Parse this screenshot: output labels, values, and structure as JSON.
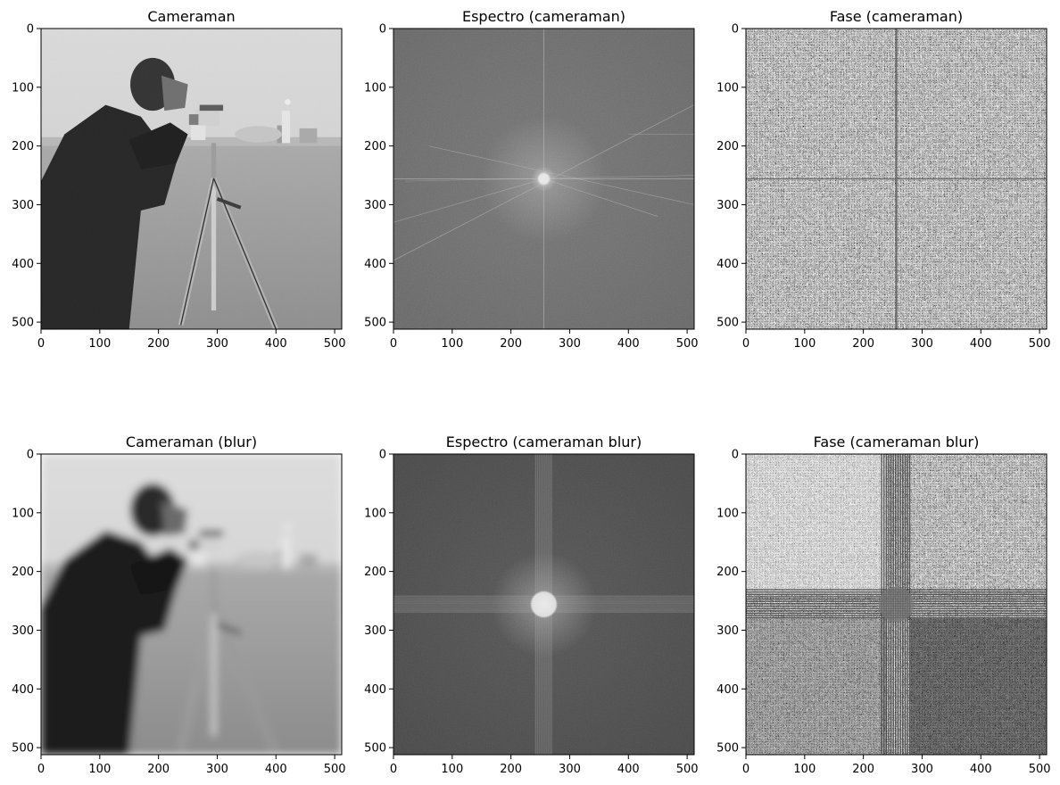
{
  "figure": {
    "background": "#ffffff",
    "grid": false,
    "legend": "none"
  },
  "chart_data": [
    {
      "type": "heatmap",
      "id": "cameraman",
      "title": "Cameraman",
      "image": "cameraman-photo",
      "colormap": "gray",
      "xlim": [
        0,
        512
      ],
      "ylim": [
        512,
        0
      ],
      "xticks": [
        0,
        100,
        200,
        300,
        400,
        500
      ],
      "yticks": [
        0,
        100,
        200,
        300,
        400,
        500
      ]
    },
    {
      "type": "heatmap",
      "id": "spectrum",
      "title": "Espectro (cameraman)",
      "image": "log-magnitude-spectrum",
      "colormap": "gray",
      "xlim": [
        0,
        512
      ],
      "ylim": [
        512,
        0
      ],
      "xticks": [
        0,
        100,
        200,
        300,
        400,
        500
      ],
      "yticks": [
        0,
        100,
        200,
        300,
        400,
        500
      ]
    },
    {
      "type": "heatmap",
      "id": "phase",
      "title": "Fase (cameraman)",
      "image": "phase-spectrum",
      "colormap": "gray",
      "xlim": [
        0,
        512
      ],
      "ylim": [
        512,
        0
      ],
      "xticks": [
        0,
        100,
        200,
        300,
        400,
        500
      ],
      "yticks": [
        0,
        100,
        200,
        300,
        400,
        500
      ]
    },
    {
      "type": "heatmap",
      "id": "cameraman-blur",
      "title": "Cameraman (blur)",
      "image": "blurred-cameraman-photo",
      "colormap": "gray",
      "xlim": [
        0,
        512
      ],
      "ylim": [
        512,
        0
      ],
      "xticks": [
        0,
        100,
        200,
        300,
        400,
        500
      ],
      "yticks": [
        0,
        100,
        200,
        300,
        400,
        500
      ]
    },
    {
      "type": "heatmap",
      "id": "spectrum-blur",
      "title": "Espectro (cameraman blur)",
      "image": "blurred-log-magnitude-spectrum",
      "colormap": "gray",
      "xlim": [
        0,
        512
      ],
      "ylim": [
        512,
        0
      ],
      "xticks": [
        0,
        100,
        200,
        300,
        400,
        500
      ],
      "yticks": [
        0,
        100,
        200,
        300,
        400,
        500
      ]
    },
    {
      "type": "heatmap",
      "id": "phase-blur",
      "title": "Fase (cameraman blur)",
      "image": "blurred-phase-spectrum",
      "colormap": "gray",
      "xlim": [
        0,
        512
      ],
      "ylim": [
        512,
        0
      ],
      "xticks": [
        0,
        100,
        200,
        300,
        400,
        500
      ],
      "yticks": [
        0,
        100,
        200,
        300,
        400,
        500
      ]
    }
  ]
}
